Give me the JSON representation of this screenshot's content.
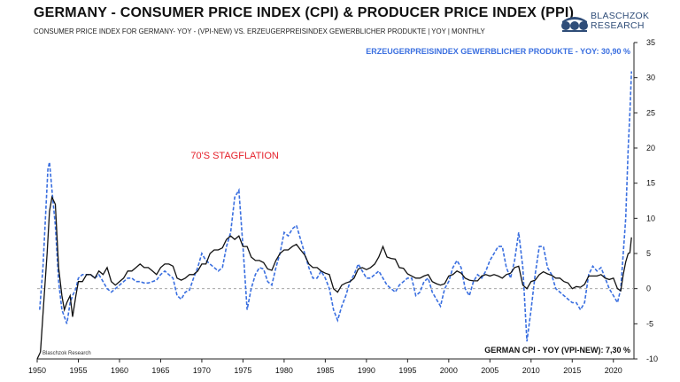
{
  "header": {
    "title": "GERMANY - CONSUMER PRICE INDEX (CPI) & PRODUCER PRICE INDEX (PPI)",
    "subtitle": "CONSUMER PRICE INDEX FOR GERMANY- YOY - (VPI-NEW) VS. ERZEUGERPREISINDEX GEWERBLICHER PRODUKTE  | YOY | MONTHLY"
  },
  "logo": {
    "line1": "BLASCHZOK",
    "line2": "RESEARCH"
  },
  "watermark": "Blaschzok  Research",
  "colors": {
    "cpi": "#111111",
    "ppi": "#3a6fe0",
    "annotation": "#e5202a",
    "zero_line": "#9a9a9a"
  },
  "chart_data": {
    "type": "line",
    "title": "GERMANY - CONSUMER PRICE INDEX (CPI) & PRODUCER PRICE INDEX (PPI)",
    "xlabel": "",
    "ylabel": "",
    "xlim": [
      1950,
      2022.5
    ],
    "ylim": [
      -10,
      35
    ],
    "x_ticks": [
      1950,
      1955,
      1960,
      1965,
      1970,
      1975,
      1980,
      1985,
      1990,
      1995,
      2000,
      2005,
      2010,
      2015,
      2020
    ],
    "y_ticks": [
      -10,
      -5,
      0,
      5,
      10,
      15,
      20,
      25,
      30,
      35
    ],
    "grid": false,
    "annotations": [
      {
        "text": "70'S STAGFLATION",
        "x": 1974,
        "y": 18.5
      }
    ],
    "series": [
      {
        "name": "German CPI - YoY (VPI-new)",
        "style": "solid",
        "label": "GERMAN CPI - YOY (VPI-NEW): 7,30 %",
        "points": [
          [
            1950,
            -10
          ],
          [
            1950.4,
            -9
          ],
          [
            1950.8,
            -2
          ],
          [
            1951.2,
            5
          ],
          [
            1951.5,
            11
          ],
          [
            1951.8,
            13
          ],
          [
            1952.2,
            12
          ],
          [
            1952.6,
            3
          ],
          [
            1953,
            -1
          ],
          [
            1953.3,
            -3
          ],
          [
            1953.6,
            -2
          ],
          [
            1954,
            -1
          ],
          [
            1954.3,
            -4
          ],
          [
            1954.7,
            -1
          ],
          [
            1955,
            1
          ],
          [
            1955.5,
            1
          ],
          [
            1956,
            2
          ],
          [
            1956.5,
            2
          ],
          [
            1957,
            1.5
          ],
          [
            1957.5,
            2.5
          ],
          [
            1958,
            2
          ],
          [
            1958.5,
            3
          ],
          [
            1959,
            1
          ],
          [
            1959.5,
            0.5
          ],
          [
            1960,
            1
          ],
          [
            1960.5,
            1.5
          ],
          [
            1961,
            2.5
          ],
          [
            1961.5,
            2.5
          ],
          [
            1962,
            3
          ],
          [
            1962.5,
            3.5
          ],
          [
            1963,
            3
          ],
          [
            1963.5,
            3
          ],
          [
            1964,
            2.5
          ],
          [
            1964.5,
            2
          ],
          [
            1965,
            3
          ],
          [
            1965.5,
            3.5
          ],
          [
            1966,
            3.5
          ],
          [
            1966.5,
            3.2
          ],
          [
            1967,
            1.5
          ],
          [
            1967.5,
            1.2
          ],
          [
            1968,
            1.5
          ],
          [
            1968.5,
            2
          ],
          [
            1969,
            2
          ],
          [
            1969.5,
            2.5
          ],
          [
            1970,
            3.5
          ],
          [
            1970.5,
            3.5
          ],
          [
            1971,
            5
          ],
          [
            1971.5,
            5.5
          ],
          [
            1972,
            5.5
          ],
          [
            1972.5,
            5.8
          ],
          [
            1973,
            7
          ],
          [
            1973.5,
            7.5
          ],
          [
            1974,
            7
          ],
          [
            1974.5,
            7.5
          ],
          [
            1975,
            6
          ],
          [
            1975.5,
            6
          ],
          [
            1976,
            4.5
          ],
          [
            1976.5,
            4
          ],
          [
            1977,
            4
          ],
          [
            1977.5,
            3.7
          ],
          [
            1978,
            2.8
          ],
          [
            1978.5,
            2.6
          ],
          [
            1979,
            4
          ],
          [
            1979.5,
            5
          ],
          [
            1980,
            5.5
          ],
          [
            1980.5,
            5.5
          ],
          [
            1981,
            6
          ],
          [
            1981.5,
            6.3
          ],
          [
            1982,
            5.5
          ],
          [
            1982.5,
            4.8
          ],
          [
            1983,
            3.5
          ],
          [
            1983.5,
            3
          ],
          [
            1984,
            3
          ],
          [
            1984.5,
            2.5
          ],
          [
            1985,
            2.2
          ],
          [
            1985.5,
            2
          ],
          [
            1986,
            0
          ],
          [
            1986.5,
            -0.5
          ],
          [
            1987,
            0.5
          ],
          [
            1987.5,
            0.8
          ],
          [
            1988,
            1
          ],
          [
            1988.5,
            1.5
          ],
          [
            1989,
            2.8
          ],
          [
            1989.5,
            3
          ],
          [
            1990,
            2.7
          ],
          [
            1990.5,
            3
          ],
          [
            1991,
            3.5
          ],
          [
            1991.5,
            4.5
          ],
          [
            1992,
            6
          ],
          [
            1992.5,
            4.5
          ],
          [
            1993,
            4.3
          ],
          [
            1993.5,
            4.2
          ],
          [
            1994,
            3
          ],
          [
            1994.5,
            2.9
          ],
          [
            1995,
            2.1
          ],
          [
            1995.5,
            1.8
          ],
          [
            1996,
            1.5
          ],
          [
            1996.5,
            1.5
          ],
          [
            1997,
            1.8
          ],
          [
            1997.5,
            2
          ],
          [
            1998,
            1
          ],
          [
            1998.5,
            0.7
          ],
          [
            1999,
            0.5
          ],
          [
            1999.5,
            0.7
          ],
          [
            2000,
            1.8
          ],
          [
            2000.5,
            2
          ],
          [
            2001,
            2.5
          ],
          [
            2001.5,
            2.2
          ],
          [
            2002,
            1.5
          ],
          [
            2002.5,
            1.2
          ],
          [
            2003,
            1.1
          ],
          [
            2003.5,
            1.1
          ],
          [
            2004,
            1.8
          ],
          [
            2004.5,
            2
          ],
          [
            2005,
            1.8
          ],
          [
            2005.5,
            2
          ],
          [
            2006,
            1.8
          ],
          [
            2006.5,
            1.5
          ],
          [
            2007,
            2
          ],
          [
            2007.5,
            2.2
          ],
          [
            2008,
            3
          ],
          [
            2008.5,
            3.2
          ],
          [
            2009,
            0.5
          ],
          [
            2009.5,
            0
          ],
          [
            2010,
            1
          ],
          [
            2010.5,
            1.2
          ],
          [
            2011,
            2
          ],
          [
            2011.5,
            2.4
          ],
          [
            2012,
            2.1
          ],
          [
            2012.5,
            1.9
          ],
          [
            2013,
            1.5
          ],
          [
            2013.5,
            1.5
          ],
          [
            2014,
            1
          ],
          [
            2014.5,
            0.8
          ],
          [
            2015,
            0
          ],
          [
            2015.5,
            0.3
          ],
          [
            2016,
            0.2
          ],
          [
            2016.5,
            0.6
          ],
          [
            2017,
            1.8
          ],
          [
            2017.5,
            1.8
          ],
          [
            2018,
            1.8
          ],
          [
            2018.5,
            2
          ],
          [
            2019,
            1.5
          ],
          [
            2019.5,
            1.3
          ],
          [
            2020,
            1.5
          ],
          [
            2020.5,
            0
          ],
          [
            2020.9,
            -0.3
          ],
          [
            2021.2,
            2
          ],
          [
            2021.5,
            3.8
          ],
          [
            2021.8,
            5
          ],
          [
            2022,
            5.1
          ],
          [
            2022.2,
            7.3
          ]
        ]
      },
      {
        "name": "Erzeugerpreisindex gewerblicher Produkte - YoY",
        "style": "dashed",
        "label": "ERZEUGERPREISINDEX GEWERBLICHER PRODUKTE - YOY: 30,90 %",
        "points": [
          [
            1950.3,
            -3
          ],
          [
            1950.7,
            3
          ],
          [
            1951,
            10
          ],
          [
            1951.3,
            17
          ],
          [
            1951.5,
            18
          ],
          [
            1951.8,
            14
          ],
          [
            1952.2,
            9
          ],
          [
            1952.6,
            1
          ],
          [
            1953,
            -3
          ],
          [
            1953.3,
            -4
          ],
          [
            1953.6,
            -5
          ],
          [
            1954,
            -2
          ],
          [
            1954.3,
            -1
          ],
          [
            1954.7,
            0
          ],
          [
            1955,
            1.5
          ],
          [
            1955.5,
            2
          ],
          [
            1956,
            2
          ],
          [
            1956.5,
            2
          ],
          [
            1957,
            1.5
          ],
          [
            1957.5,
            2
          ],
          [
            1958,
            1
          ],
          [
            1958.5,
            0
          ],
          [
            1959,
            -0.5
          ],
          [
            1959.5,
            0
          ],
          [
            1960,
            0.5
          ],
          [
            1960.5,
            1
          ],
          [
            1961,
            1.5
          ],
          [
            1961.5,
            1.5
          ],
          [
            1962,
            1
          ],
          [
            1962.5,
            1
          ],
          [
            1963,
            0.8
          ],
          [
            1963.5,
            0.8
          ],
          [
            1964,
            1
          ],
          [
            1964.5,
            1.2
          ],
          [
            1965,
            2
          ],
          [
            1965.5,
            2.5
          ],
          [
            1966,
            2
          ],
          [
            1966.5,
            1.5
          ],
          [
            1967,
            -1
          ],
          [
            1967.5,
            -1.5
          ],
          [
            1968,
            -0.5
          ],
          [
            1968.5,
            -0.2
          ],
          [
            1969,
            1.5
          ],
          [
            1969.5,
            3
          ],
          [
            1970,
            5
          ],
          [
            1970.5,
            4
          ],
          [
            1971,
            3.5
          ],
          [
            1971.5,
            3
          ],
          [
            1972,
            2.5
          ],
          [
            1972.5,
            3
          ],
          [
            1973,
            6
          ],
          [
            1973.5,
            8
          ],
          [
            1974,
            13
          ],
          [
            1974.5,
            14
          ],
          [
            1975,
            6
          ],
          [
            1975.5,
            -3
          ],
          [
            1976,
            0
          ],
          [
            1976.5,
            2
          ],
          [
            1977,
            3
          ],
          [
            1977.5,
            2.8
          ],
          [
            1978,
            1
          ],
          [
            1978.5,
            0.5
          ],
          [
            1979,
            3
          ],
          [
            1979.5,
            5
          ],
          [
            1980,
            8
          ],
          [
            1980.5,
            7.5
          ],
          [
            1981,
            8.5
          ],
          [
            1981.5,
            9
          ],
          [
            1982,
            7
          ],
          [
            1982.5,
            5
          ],
          [
            1983,
            3
          ],
          [
            1983.5,
            1.5
          ],
          [
            1984,
            1.5
          ],
          [
            1984.5,
            2.5
          ],
          [
            1985,
            1.5
          ],
          [
            1985.5,
            0
          ],
          [
            1986,
            -3
          ],
          [
            1986.5,
            -4.5
          ],
          [
            1987,
            -2.5
          ],
          [
            1987.5,
            -1
          ],
          [
            1988,
            1
          ],
          [
            1988.5,
            2
          ],
          [
            1989,
            3.5
          ],
          [
            1989.5,
            2.5
          ],
          [
            1990,
            1.5
          ],
          [
            1990.5,
            1.5
          ],
          [
            1991,
            2
          ],
          [
            1991.5,
            2.5
          ],
          [
            1992,
            1.5
          ],
          [
            1992.5,
            0.5
          ],
          [
            1993,
            0
          ],
          [
            1993.5,
            -0.5
          ],
          [
            1994,
            0.5
          ],
          [
            1994.5,
            1
          ],
          [
            1995,
            1.5
          ],
          [
            1995.5,
            1.5
          ],
          [
            1996,
            -1
          ],
          [
            1996.5,
            -0.5
          ],
          [
            1997,
            1
          ],
          [
            1997.5,
            1.5
          ],
          [
            1998,
            -0.5
          ],
          [
            1998.5,
            -1.5
          ],
          [
            1999,
            -2.5
          ],
          [
            1999.5,
            0
          ],
          [
            2000,
            1
          ],
          [
            2000.5,
            3
          ],
          [
            2001,
            4
          ],
          [
            2001.5,
            3
          ],
          [
            2002,
            0
          ],
          [
            2002.5,
            -1
          ],
          [
            2003,
            1
          ],
          [
            2003.5,
            2
          ],
          [
            2004,
            1.5
          ],
          [
            2004.5,
            2.5
          ],
          [
            2005,
            4
          ],
          [
            2005.5,
            5
          ],
          [
            2006,
            6
          ],
          [
            2006.5,
            6
          ],
          [
            2007,
            3
          ],
          [
            2007.5,
            1.5
          ],
          [
            2008,
            4
          ],
          [
            2008.5,
            8
          ],
          [
            2009,
            3
          ],
          [
            2009.5,
            -7.5
          ],
          [
            2010,
            -3
          ],
          [
            2010.5,
            2
          ],
          [
            2011,
            6
          ],
          [
            2011.5,
            6
          ],
          [
            2012,
            3
          ],
          [
            2012.5,
            2
          ],
          [
            2013,
            0
          ],
          [
            2013.5,
            -0.5
          ],
          [
            2014,
            -1
          ],
          [
            2014.5,
            -1.5
          ],
          [
            2015,
            -2
          ],
          [
            2015.5,
            -2
          ],
          [
            2016,
            -3
          ],
          [
            2016.5,
            -2
          ],
          [
            2017,
            2
          ],
          [
            2017.5,
            3.2
          ],
          [
            2018,
            2.5
          ],
          [
            2018.5,
            3
          ],
          [
            2019,
            1.5
          ],
          [
            2019.5,
            0
          ],
          [
            2020,
            -1
          ],
          [
            2020.5,
            -2
          ],
          [
            2020.9,
            0
          ],
          [
            2021.2,
            5
          ],
          [
            2021.5,
            10
          ],
          [
            2021.8,
            20
          ],
          [
            2022,
            25
          ],
          [
            2022.2,
            30.9
          ]
        ]
      }
    ]
  }
}
